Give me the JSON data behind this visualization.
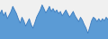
{
  "values": [
    95,
    100,
    92,
    97,
    88,
    93,
    98,
    105,
    100,
    95,
    88,
    82,
    90,
    85,
    78,
    83,
    88,
    80,
    75,
    82,
    90,
    95,
    100,
    107,
    102,
    96,
    100,
    105,
    98,
    102,
    97,
    100,
    95,
    98,
    92,
    96,
    100,
    95,
    90,
    94,
    98,
    92,
    88,
    84,
    90,
    86,
    80,
    75,
    68,
    76,
    85,
    90,
    88,
    84,
    88,
    84,
    88,
    85,
    90,
    87
  ],
  "fill_color": "#5b9bd5",
  "line_color": "#3a7bbf",
  "background_color": "#f0f0f0",
  "baseline": 60,
  "ylim_min": 60,
  "ylim_max": 115
}
